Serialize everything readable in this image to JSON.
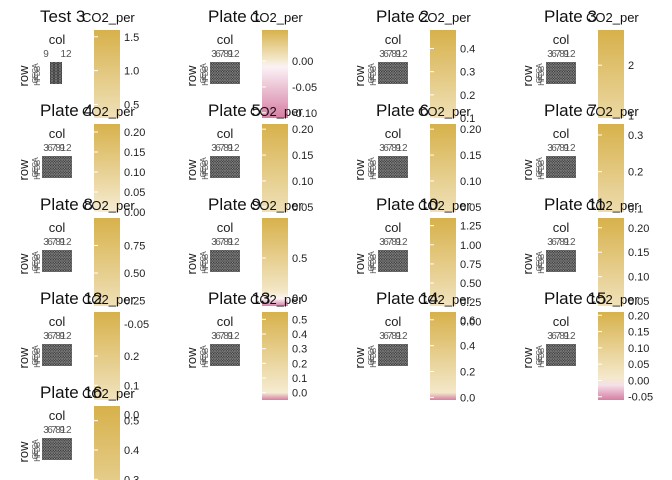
{
  "chart_data": {
    "type": "heatmap",
    "facet_layout": "4-columns",
    "xlabel": "col",
    "ylabel": "row",
    "legend_title": "CO2_per",
    "colors": {
      "low": "#d67ea3",
      "mid": "#ffffff",
      "high": "#d7b14b",
      "tile_fill": "#3f3f3f",
      "tile_outline": "#9a9a9a"
    },
    "col_tick_labels": [
      "3",
      "6",
      "7",
      "8",
      "9",
      "12"
    ],
    "row_tick_labels": [
      "A",
      "B",
      "C",
      "D",
      "E",
      "F",
      "G",
      "H"
    ],
    "panels": [
      {
        "title": "Test 3",
        "col_tick_labels": [
          "9",
          "12"
        ],
        "row_tick_labels": [
          "A",
          "B",
          "C",
          "D",
          "E",
          "F",
          "G",
          "H"
        ],
        "legend_breaks": [
          1.5,
          1.0,
          0.5
        ],
        "legend_range": [
          0.3,
          1.6
        ]
      },
      {
        "title": "Plate 1",
        "legend_breaks": [
          0.0,
          -0.05,
          -0.1
        ],
        "legend_range": [
          -0.11,
          0.06
        ]
      },
      {
        "title": "Plate 2",
        "legend_breaks": [
          0.4,
          0.3,
          0.2,
          0.1
        ],
        "legend_range": [
          0.1,
          0.48
        ]
      },
      {
        "title": "Plate 3",
        "legend_breaks": [
          2,
          1
        ],
        "legend_range": [
          0.95,
          2.7
        ]
      },
      {
        "title": "Plate 4",
        "legend_breaks": [
          0.2,
          0.15,
          0.1,
          0.05,
          0.0
        ],
        "legend_range": [
          0.0,
          0.22
        ]
      },
      {
        "title": "Plate 5",
        "legend_breaks": [
          0.2,
          0.15,
          0.1,
          0.05
        ],
        "legend_range": [
          0.04,
          0.21
        ]
      },
      {
        "title": "Plate 6",
        "legend_breaks": [
          0.2,
          0.15,
          0.1,
          0.05
        ],
        "legend_range": [
          0.04,
          0.21
        ]
      },
      {
        "title": "Plate 7",
        "legend_breaks": [
          0.3,
          0.2,
          0.1
        ],
        "legend_range": [
          0.09,
          0.33
        ]
      },
      {
        "title": "Plate 8",
        "legend_breaks": [
          -0.05,
          0.75,
          0.5,
          0.25
        ],
        "legend_range": [
          0.2,
          1.0
        ]
      },
      {
        "title": "Plate 9",
        "legend_breaks": [
          0.0,
          0.5,
          0.0
        ],
        "legend_range": [
          -0.1,
          1.0
        ]
      },
      {
        "title": "Plate 10",
        "legend_breaks": [
          0.0,
          1.25,
          1.0,
          0.75,
          0.5,
          0.25
        ],
        "legend_range": [
          0.2,
          1.35
        ]
      },
      {
        "title": "Plate 11",
        "legend_breaks": [
          0.2,
          0.15,
          0.1,
          0.05
        ],
        "legend_range": [
          0.04,
          0.22
        ]
      },
      {
        "title": "Plate 12",
        "legend_breaks": [
          0.0,
          0.2,
          0.1
        ],
        "legend_range": [
          0.05,
          0.35
        ]
      },
      {
        "title": "Plate 13",
        "legend_breaks": [
          0.5,
          0.4,
          0.3,
          0.2,
          0.1,
          0.0
        ],
        "legend_range": [
          -0.05,
          0.55
        ]
      },
      {
        "title": "Plate 14",
        "legend_breaks": [
          0.6,
          0.4,
          0.2,
          0.0
        ],
        "legend_range": [
          -0.02,
          0.66
        ]
      },
      {
        "title": "Plate 15",
        "legend_breaks": [
          0.2,
          0.15,
          0.1,
          0.05,
          0.0,
          -0.05
        ],
        "legend_range": [
          -0.06,
          0.21
        ]
      },
      {
        "title": "Plate 16",
        "legend_breaks": [
          0.5,
          0.4,
          0.3
        ],
        "legend_range": [
          0.25,
          0.55
        ]
      }
    ]
  }
}
